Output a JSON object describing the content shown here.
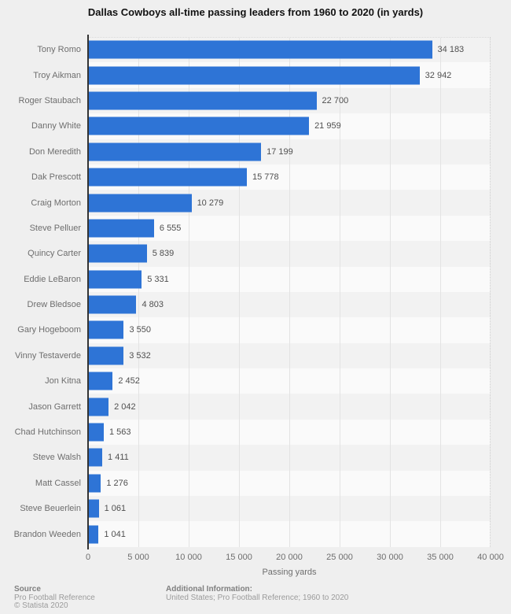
{
  "title": "Dallas Cowboys all-time passing leaders from 1960 to 2020 (in yards)",
  "colors": {
    "bar": "#2e74d6",
    "page_bg": "#efefef",
    "stripe_odd": "#f2f2f2",
    "stripe_even": "#fafafa",
    "gridline": "#e3e3e3",
    "axis_line": "#333333"
  },
  "chart_data": {
    "type": "bar",
    "orientation": "horizontal",
    "title": "Dallas Cowboys all-time passing leaders from 1960 to 2020 (in yards)",
    "xlabel": "Passing yards",
    "ylabel": "",
    "xlim": [
      0,
      40000
    ],
    "x_tick_step": 5000,
    "x_tick_labels": [
      "0",
      "5 000",
      "10 000",
      "15 000",
      "20 000",
      "25 000",
      "30 000",
      "35 000",
      "40 000"
    ],
    "grid": "vertical",
    "legend": "none",
    "categories": [
      "Tony Romo",
      "Troy Aikman",
      "Roger Staubach",
      "Danny White",
      "Don Meredith",
      "Dak Prescott",
      "Craig Morton",
      "Steve Pelluer",
      "Quincy Carter",
      "Eddie LeBaron",
      "Drew Bledsoe",
      "Gary Hogeboom",
      "Vinny Testaverde",
      "Jon Kitna",
      "Jason Garrett",
      "Chad Hutchinson",
      "Steve Walsh",
      "Matt Cassel",
      "Steve Beuerlein",
      "Brandon Weeden"
    ],
    "values": [
      34183,
      32942,
      22700,
      21959,
      17199,
      15778,
      10279,
      6555,
      5839,
      5331,
      4803,
      3550,
      3532,
      2452,
      2042,
      1563,
      1411,
      1276,
      1061,
      1041
    ],
    "value_labels": [
      "34 183",
      "32 942",
      "22 700",
      "21 959",
      "17 199",
      "15 778",
      "10 279",
      "6 555",
      "5 839",
      "5 331",
      "4 803",
      "3 550",
      "3 532",
      "2 452",
      "2 042",
      "1 563",
      "1 411",
      "1 276",
      "1 061",
      "1 041"
    ]
  },
  "footer": {
    "source_label": "Source",
    "source_line1": "Pro Football Reference",
    "source_line2": "© Statista 2020",
    "additional_label": "Additional Information:",
    "additional_text": "United States; Pro Football Reference; 1960 to 2020"
  }
}
